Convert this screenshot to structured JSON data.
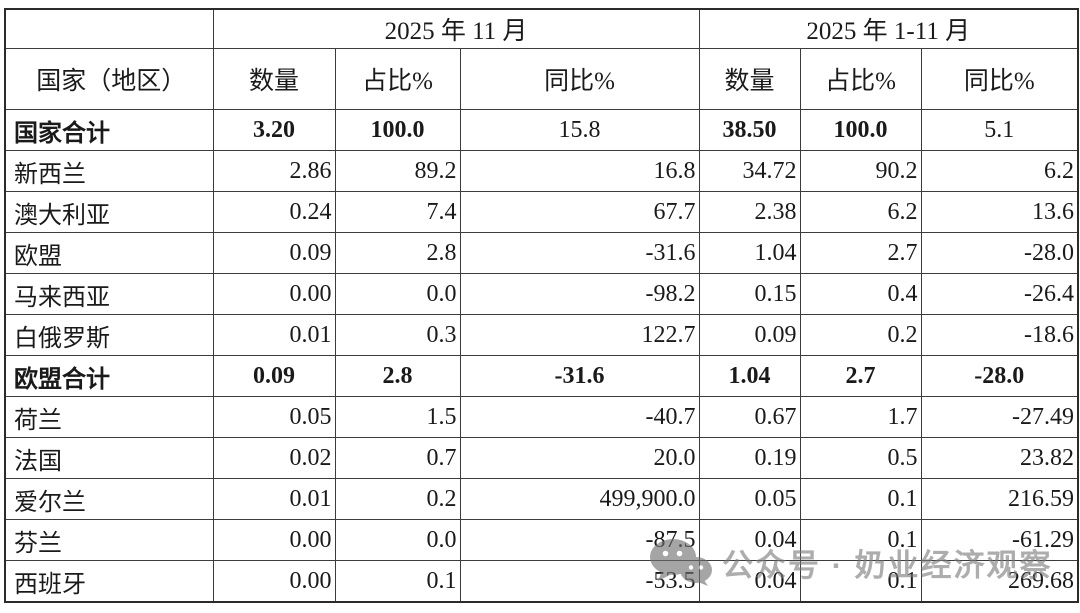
{
  "chart_data": {
    "type": "table",
    "corner_header": "国家（地区）",
    "column_groups": [
      {
        "label": "2025 年 11 月",
        "span": 3
      },
      {
        "label": "2025 年 1-11 月",
        "span": 3
      }
    ],
    "columns": [
      "数量",
      "占比%",
      "同比%",
      "数量",
      "占比%",
      "同比%"
    ],
    "rows": [
      {
        "label": "国家合计",
        "bold": true,
        "align": "center",
        "values": [
          "3.20",
          "100.0",
          "15.8",
          "38.50",
          "100.0",
          "5.1"
        ],
        "light_value_indices": [
          2,
          5
        ]
      },
      {
        "label": "新西兰",
        "bold": false,
        "align": "right",
        "values": [
          "2.86",
          "89.2",
          "16.8",
          "34.72",
          "90.2",
          "6.2"
        ]
      },
      {
        "label": "澳大利亚",
        "bold": false,
        "align": "right",
        "values": [
          "0.24",
          "7.4",
          "67.7",
          "2.38",
          "6.2",
          "13.6"
        ]
      },
      {
        "label": "欧盟",
        "bold": false,
        "align": "right",
        "values": [
          "0.09",
          "2.8",
          "-31.6",
          "1.04",
          "2.7",
          "-28.0"
        ]
      },
      {
        "label": "马来西亚",
        "bold": false,
        "align": "right",
        "values": [
          "0.00",
          "0.0",
          "-98.2",
          "0.15",
          "0.4",
          "-26.4"
        ]
      },
      {
        "label": "白俄罗斯",
        "bold": false,
        "align": "right",
        "values": [
          "0.01",
          "0.3",
          "122.7",
          "0.09",
          "0.2",
          "-18.6"
        ]
      },
      {
        "label": "欧盟合计",
        "bold": true,
        "align": "center",
        "values": [
          "0.09",
          "2.8",
          "-31.6",
          "1.04",
          "2.7",
          "-28.0"
        ]
      },
      {
        "label": "荷兰",
        "bold": false,
        "align": "right",
        "values": [
          "0.05",
          "1.5",
          "-40.7",
          "0.67",
          "1.7",
          "-27.49"
        ]
      },
      {
        "label": "法国",
        "bold": false,
        "align": "right",
        "values": [
          "0.02",
          "0.7",
          "20.0",
          "0.19",
          "0.5",
          "23.82"
        ]
      },
      {
        "label": "爱尔兰",
        "bold": false,
        "align": "right",
        "values": [
          "0.01",
          "0.2",
          "499,900.0",
          "0.05",
          "0.1",
          "216.59"
        ]
      },
      {
        "label": "芬兰",
        "bold": false,
        "align": "right",
        "values": [
          "0.00",
          "0.0",
          "-87.5",
          "0.04",
          "0.1",
          "-61.29"
        ]
      },
      {
        "label": "西班牙",
        "bold": false,
        "align": "right",
        "values": [
          "0.00",
          "0.1",
          "-53.5",
          "0.04",
          "0.1",
          "269.68"
        ]
      }
    ]
  },
  "watermark": {
    "icon": "wechat-icon",
    "text": "公众号 · 奶业经济观察",
    "color": "#7a7a7a"
  },
  "colors": {
    "background": "#ffffff",
    "text": "#1a1a1a",
    "border": "#3c3c3c"
  }
}
